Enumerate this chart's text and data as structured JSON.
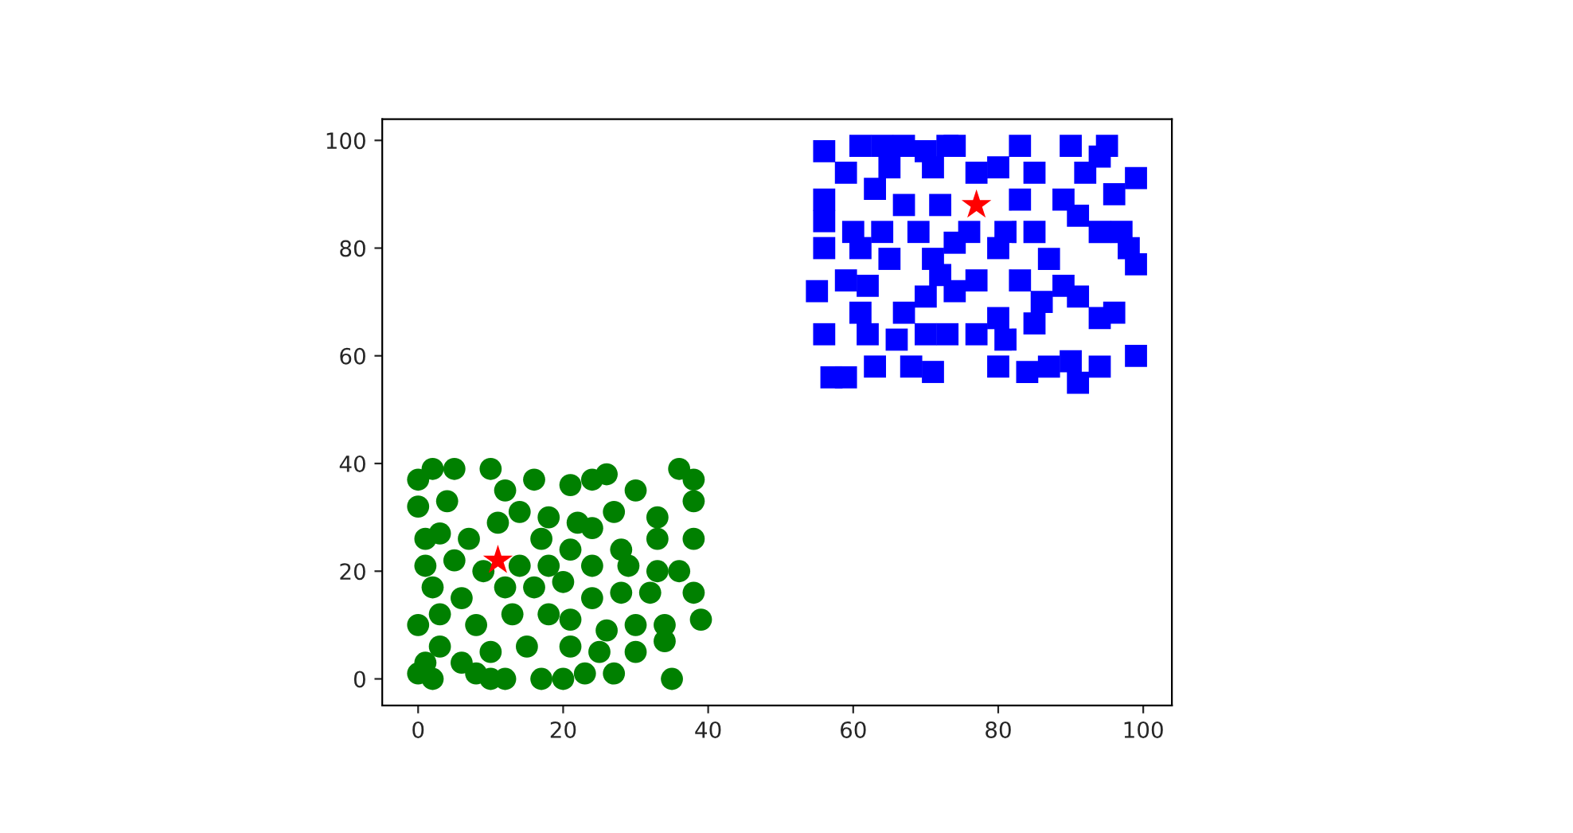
{
  "chart_data": {
    "type": "scatter",
    "xlim": [
      -4.95,
      103.95
    ],
    "ylim": [
      -4.95,
      103.95
    ],
    "xticks": [
      0,
      20,
      40,
      60,
      80,
      100
    ],
    "yticks": [
      0,
      20,
      40,
      60,
      80,
      100
    ],
    "grid": false,
    "legend": false,
    "series": [
      {
        "color": "#008000",
        "marker": "circle",
        "x": [
          0,
          2,
          5,
          10,
          16,
          21,
          24,
          26,
          30,
          36,
          38,
          0,
          4,
          12,
          14,
          18,
          22,
          27,
          33,
          38,
          1,
          3,
          7,
          11,
          17,
          21,
          24,
          28,
          33,
          38,
          1,
          5,
          9,
          14,
          18,
          24,
          29,
          33,
          36,
          2,
          6,
          12,
          16,
          20,
          24,
          28,
          32,
          38,
          0,
          3,
          8,
          13,
          18,
          21,
          26,
          30,
          34,
          39,
          1,
          3,
          6,
          10,
          15,
          21,
          25,
          30,
          34,
          0,
          2,
          8,
          10,
          12,
          17,
          20,
          23,
          27,
          35
        ],
        "values": [
          37,
          39,
          39,
          39,
          37,
          36,
          37,
          38,
          35,
          39,
          37,
          32,
          33,
          35,
          31,
          30,
          29,
          31,
          30,
          33,
          26,
          27,
          26,
          29,
          26,
          24,
          28,
          24,
          26,
          26,
          21,
          22,
          20,
          21,
          21,
          21,
          21,
          20,
          20,
          17,
          15,
          17,
          17,
          18,
          15,
          16,
          16,
          16,
          10,
          12,
          10,
          12,
          12,
          11,
          9,
          10,
          10,
          11,
          3,
          6,
          3,
          5,
          6,
          6,
          5,
          5,
          7,
          1,
          0,
          1,
          0,
          0,
          0,
          0,
          1,
          1,
          0
        ]
      },
      {
        "color": "#0000ff",
        "marker": "square",
        "x": [
          56,
          61,
          64,
          67,
          70,
          73,
          74,
          83,
          90,
          95,
          59,
          65,
          71,
          77,
          80,
          85,
          92,
          94,
          99,
          56,
          63,
          67,
          72,
          83,
          89,
          96,
          56,
          60,
          64,
          69,
          76,
          81,
          85,
          91,
          97,
          56,
          61,
          65,
          71,
          74,
          80,
          87,
          94,
          98,
          59,
          62,
          72,
          77,
          83,
          89,
          99,
          55,
          61,
          67,
          70,
          74,
          80,
          86,
          91,
          96,
          56,
          62,
          66,
          70,
          73,
          77,
          81,
          85,
          90,
          94,
          57,
          59,
          63,
          68,
          71,
          80,
          84,
          87,
          91,
          94,
          99
        ],
        "values": [
          98,
          99,
          99,
          99,
          98,
          99,
          99,
          99,
          99,
          99,
          94,
          95,
          95,
          94,
          95,
          94,
          94,
          97,
          93,
          89,
          91,
          88,
          88,
          89,
          89,
          90,
          85,
          83,
          83,
          83,
          83,
          83,
          83,
          86,
          83,
          80,
          80,
          78,
          78,
          81,
          80,
          78,
          83,
          80,
          74,
          73,
          75,
          74,
          74,
          73,
          77,
          72,
          68,
          68,
          71,
          72,
          67,
          70,
          71,
          68,
          64,
          64,
          63,
          64,
          64,
          64,
          63,
          66,
          59,
          67,
          56,
          56,
          58,
          58,
          57,
          58,
          57,
          58,
          55,
          58,
          60
        ]
      },
      {
        "color": "#ff0000",
        "marker": "star",
        "x": [
          11,
          77
        ],
        "values": [
          22,
          88
        ]
      }
    ]
  }
}
